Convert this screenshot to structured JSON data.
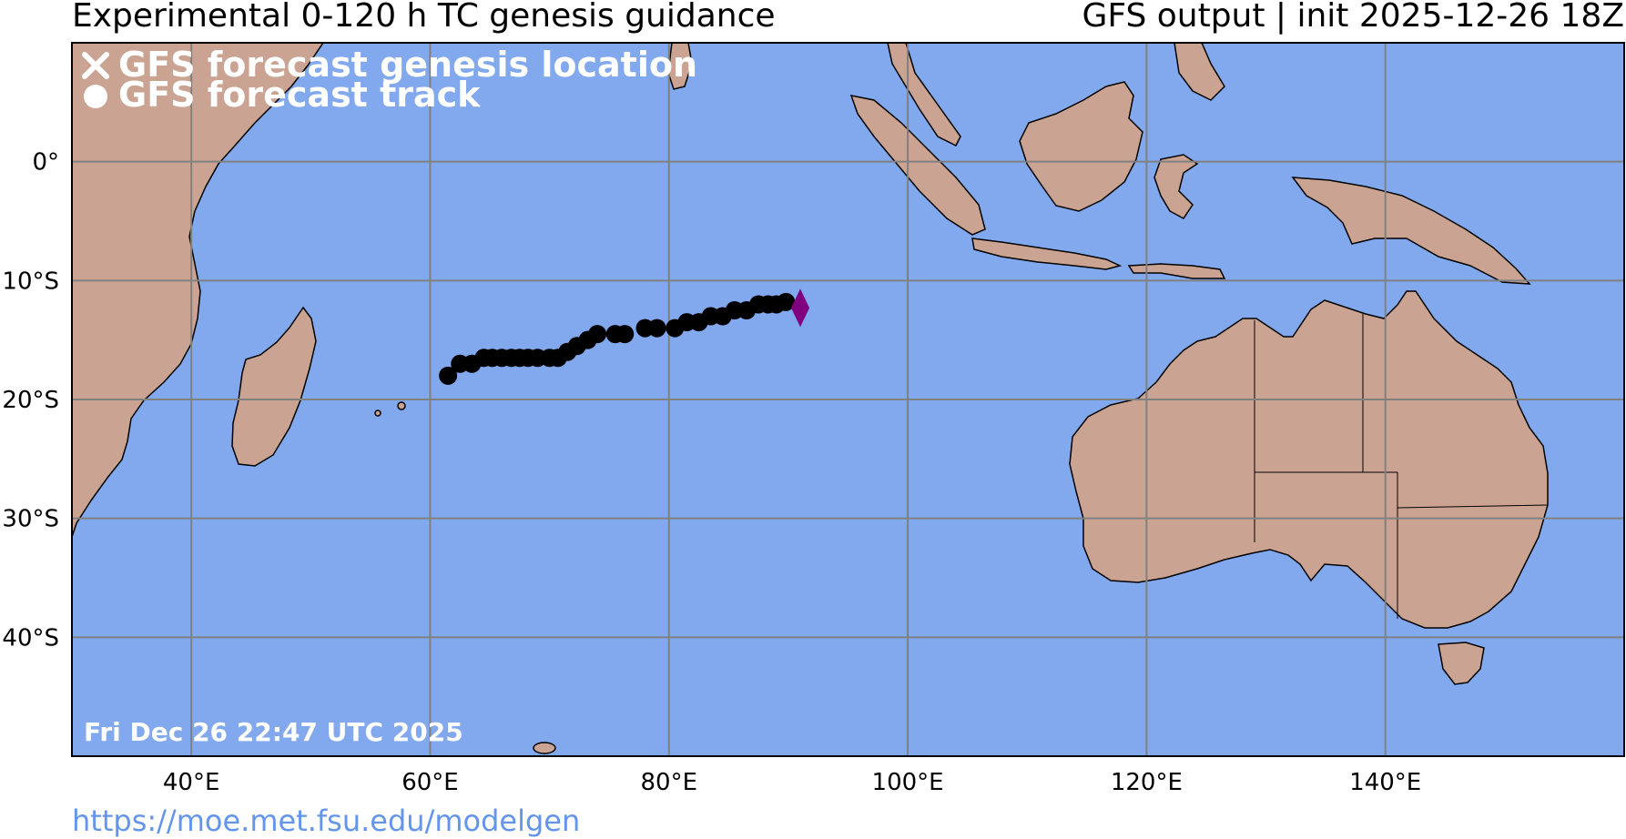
{
  "header": {
    "title_left": "Experimental 0-120 h TC genesis guidance",
    "title_right": "GFS output | init 2025-12-26 18Z"
  },
  "footer": {
    "url": "https://moe.met.fsu.edu/modelgen",
    "url_color": "#6495ED"
  },
  "map": {
    "ocean_color": "#82A8EE",
    "land_color": "#CBA392",
    "lakes_color": "#6F8FE0",
    "timestamp": "Fri Dec 26 22:47 UTC 2025",
    "lon_range": [
      30,
      160
    ],
    "lat_range": [
      -50,
      10
    ],
    "x_ticks": [
      "40°E",
      "60°E",
      "80°E",
      "100°E",
      "120°E",
      "140°E"
    ],
    "y_ticks": [
      "0°",
      "10°S",
      "20°S",
      "30°S",
      "40°S"
    ],
    "legend": [
      {
        "symbol": "x-icon",
        "label": "GFS forecast genesis location"
      },
      {
        "symbol": "dot-icon",
        "label": "GFS forecast track"
      }
    ],
    "track_color": "#000000",
    "genesis_marker_color": "#800080",
    "genesis_location": {
      "lon": 91.0,
      "lat": -12.3
    },
    "track": [
      {
        "lon": 61.5,
        "lat": -18.0
      },
      {
        "lon": 62.5,
        "lat": -17.0
      },
      {
        "lon": 63.5,
        "lat": -17.0
      },
      {
        "lon": 64.5,
        "lat": -16.5
      },
      {
        "lon": 65.2,
        "lat": -16.5
      },
      {
        "lon": 66.0,
        "lat": -16.5
      },
      {
        "lon": 66.8,
        "lat": -16.5
      },
      {
        "lon": 67.5,
        "lat": -16.5
      },
      {
        "lon": 68.2,
        "lat": -16.5
      },
      {
        "lon": 69.0,
        "lat": -16.5
      },
      {
        "lon": 70.0,
        "lat": -16.5
      },
      {
        "lon": 70.7,
        "lat": -16.5
      },
      {
        "lon": 71.5,
        "lat": -16.0
      },
      {
        "lon": 72.3,
        "lat": -15.5
      },
      {
        "lon": 73.2,
        "lat": -15.0
      },
      {
        "lon": 74.0,
        "lat": -14.5
      },
      {
        "lon": 75.5,
        "lat": -14.5
      },
      {
        "lon": 76.3,
        "lat": -14.5
      },
      {
        "lon": 78.0,
        "lat": -14.0
      },
      {
        "lon": 79.0,
        "lat": -14.0
      },
      {
        "lon": 80.5,
        "lat": -14.0
      },
      {
        "lon": 81.5,
        "lat": -13.5
      },
      {
        "lon": 82.5,
        "lat": -13.5
      },
      {
        "lon": 83.5,
        "lat": -13.0
      },
      {
        "lon": 84.5,
        "lat": -13.0
      },
      {
        "lon": 85.5,
        "lat": -12.5
      },
      {
        "lon": 86.5,
        "lat": -12.5
      },
      {
        "lon": 87.5,
        "lat": -12.0
      },
      {
        "lon": 88.3,
        "lat": -12.0
      },
      {
        "lon": 89.0,
        "lat": -12.0
      },
      {
        "lon": 89.8,
        "lat": -11.8
      }
    ]
  }
}
